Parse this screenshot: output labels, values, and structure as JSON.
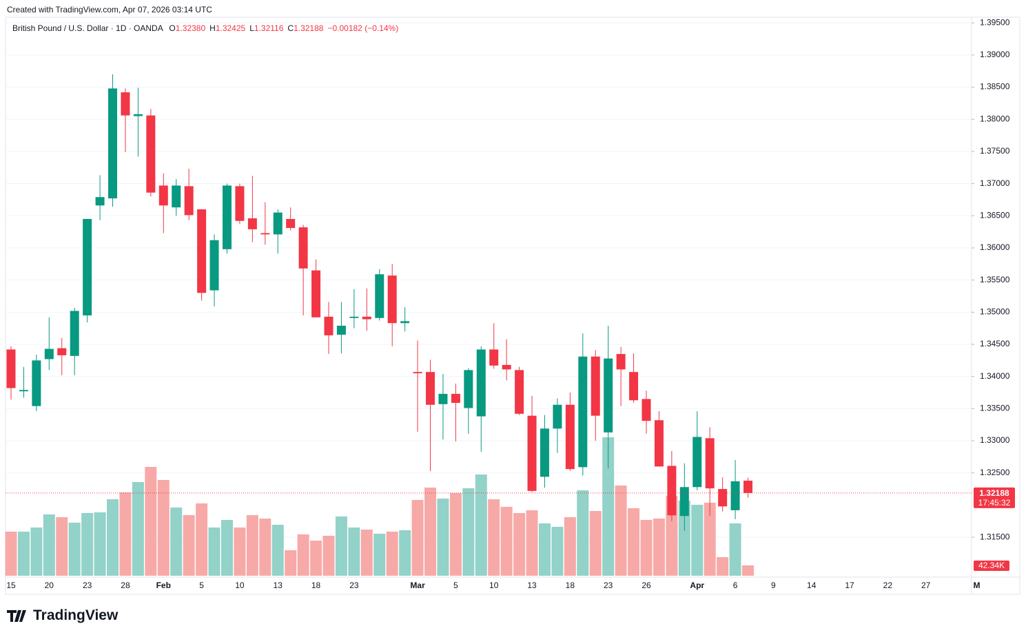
{
  "watermark": "Created with TradingView.com, Apr 07, 2026 03:14 UTC",
  "brand": "TradingView",
  "chart_data": {
    "type": "candlestick",
    "title": "British Pound / U.S. Dollar · 1D · OANDA",
    "legend": [
      {
        "label": "O",
        "text": "1.32380"
      },
      {
        "label": "H",
        "text": "1.32425"
      },
      {
        "label": "L",
        "text": "1.32116"
      },
      {
        "label": "C",
        "text": "1.32188"
      }
    ],
    "change": "−0.00182 (−0.14%)",
    "categories": [
      "15",
      null,
      null,
      "20",
      null,
      null,
      "23",
      null,
      null,
      "28",
      null,
      null,
      "Feb",
      null,
      null,
      "5",
      null,
      null,
      "10",
      null,
      null,
      "13",
      null,
      null,
      "18",
      null,
      null,
      "23",
      null,
      null,
      null,
      null,
      "Mar",
      null,
      null,
      "5",
      null,
      null,
      "10",
      null,
      null,
      "13",
      null,
      null,
      "18",
      null,
      null,
      "23",
      null,
      null,
      "26",
      null,
      null,
      null,
      "Apr",
      null,
      null,
      "6",
      null,
      null,
      "9",
      null,
      null,
      "14",
      null,
      null,
      "17",
      null,
      null,
      "22",
      null,
      null,
      "27",
      null,
      null,
      null,
      "M"
    ],
    "open": [
      1.3442,
      1.3377,
      1.3354,
      1.3427,
      1.3444,
      1.3432,
      1.3495,
      1.3666,
      1.3677,
      1.3842,
      1.3805,
      1.3806,
      1.3697,
      1.3663,
      1.3696,
      1.366,
      1.3534,
      1.3598,
      1.3696,
      1.3646,
      1.3623,
      1.3621,
      1.3645,
      1.3632,
      1.3565,
      1.3493,
      1.3465,
      1.3491,
      1.3493,
      1.3491,
      1.3557,
      1.3483,
      1.3407,
      1.3407,
      1.3357,
      1.3373,
      1.3351,
      1.3338,
      1.3442,
      1.3418,
      1.341,
      1.3339,
      1.3244,
      1.3319,
      1.3356,
      1.3259,
      1.3431,
      1.3313,
      1.3435,
      1.3407,
      1.3365,
      1.3332,
      1.3261,
      1.3183,
      1.3228,
      1.3304,
      1.3225,
      1.3192,
      1.3238,
      null,
      null,
      null,
      null,
      null,
      null,
      null,
      null,
      null,
      null,
      null,
      null,
      null,
      null,
      null,
      null,
      null,
      null
    ],
    "high": [
      1.3447,
      1.3415,
      1.3434,
      1.3492,
      1.346,
      1.3507,
      1.3645,
      1.3713,
      1.387,
      1.3848,
      1.3849,
      1.3816,
      1.3716,
      1.3707,
      1.3723,
      1.366,
      1.3621,
      1.37,
      1.37,
      1.3712,
      1.3671,
      1.366,
      1.3663,
      1.3636,
      1.3582,
      1.3516,
      1.3516,
      1.3536,
      1.3537,
      1.3567,
      1.3575,
      1.3508,
      1.3456,
      1.3426,
      1.3404,
      1.3389,
      1.3413,
      1.3447,
      1.3483,
      1.3458,
      1.3415,
      1.337,
      1.334,
      1.3366,
      1.3375,
      1.3467,
      1.3441,
      1.3479,
      1.3446,
      1.3436,
      1.3378,
      1.3346,
      1.3284,
      1.3265,
      1.3346,
      1.3321,
      1.3243,
      1.327,
      1.32425,
      null,
      null,
      null,
      null,
      null,
      null,
      null,
      null,
      null,
      null,
      null,
      null,
      null,
      null,
      null,
      null,
      null,
      null
    ],
    "low": [
      1.3364,
      1.3367,
      1.3346,
      1.341,
      1.3402,
      1.3402,
      1.3484,
      1.3643,
      1.3664,
      1.3749,
      1.3742,
      1.368,
      1.3623,
      1.365,
      1.3643,
      1.3518,
      1.3509,
      1.3591,
      1.3637,
      1.3609,
      1.3605,
      1.3591,
      1.3627,
      1.3495,
      1.3492,
      1.3435,
      1.3436,
      1.3475,
      1.3471,
      1.3487,
      1.3447,
      1.347,
      1.3314,
      1.3253,
      1.3302,
      1.3299,
      1.3311,
      1.3283,
      1.3412,
      1.3394,
      1.334,
      1.322,
      1.3227,
      1.3281,
      1.3253,
      1.3246,
      1.33,
      1.3257,
      1.3354,
      1.3359,
      1.3311,
      1.326,
      1.3175,
      1.316,
      1.3223,
      1.3183,
      1.319,
      1.3178,
      1.32116,
      null,
      null,
      null,
      null,
      null,
      null,
      null,
      null,
      null,
      null,
      null,
      null,
      null,
      null,
      null,
      null,
      null,
      null
    ],
    "close": [
      1.3382,
      1.3379,
      1.3425,
      1.3443,
      1.3433,
      1.3502,
      1.3645,
      1.3679,
      1.3848,
      1.3806,
      1.3808,
      1.3686,
      1.3666,
      1.3697,
      1.3651,
      1.353,
      1.3612,
      1.3697,
      1.3642,
      1.3629,
      1.3621,
      1.3655,
      1.3631,
      1.3568,
      1.3492,
      1.3464,
      1.3479,
      1.3493,
      1.3489,
      1.3559,
      1.3483,
      1.3486,
      1.3405,
      1.3356,
      1.3373,
      1.3359,
      1.341,
      1.3442,
      1.3417,
      1.3411,
      1.3342,
      1.3222,
      1.3319,
      1.3356,
      1.3256,
      1.3431,
      1.3339,
      1.3428,
      1.3411,
      1.3363,
      1.3331,
      1.326,
      1.3184,
      1.3228,
      1.3306,
      1.3226,
      1.3198,
      1.3237,
      1.32188,
      null,
      null,
      null,
      null,
      null,
      null,
      null,
      null,
      null,
      null,
      null,
      null,
      null,
      null,
      null,
      null,
      null,
      null
    ],
    "volume": [
      180700,
      180700,
      197600,
      251200,
      240000,
      217400,
      256900,
      259700,
      313400,
      341600,
      383900,
      446000,
      392400,
      279500,
      248400,
      296400,
      197600,
      228700,
      197600,
      248400,
      234300,
      208900,
      104500,
      169400,
      144000,
      163700,
      242800,
      197600,
      189100,
      172200,
      180700,
      186300,
      310500,
      361300,
      316200,
      338800,
      358500,
      415000,
      313400,
      282300,
      256900,
      268200,
      214500,
      200400,
      240000,
      350100,
      265400,
      567400,
      369800,
      276700,
      228700,
      234300,
      327500,
      307700,
      290800,
      299200,
      76200,
      214500,
      42340,
      null,
      null,
      null,
      null,
      null,
      null,
      null,
      null,
      null,
      null,
      null,
      null,
      null,
      null,
      null,
      null,
      null,
      null
    ],
    "up_color": "#089981",
    "down_color": "#f23645",
    "volume_up_color": "#92d2c8",
    "volume_down_color": "#f7a9a7",
    "ylim": [
      1.3088,
      1.3977
    ],
    "yticks": [
      {
        "value": 1.395,
        "label": "1.39500"
      },
      {
        "value": 1.39,
        "label": "1.39000"
      },
      {
        "value": 1.385,
        "label": "1.38500"
      },
      {
        "value": 1.38,
        "label": "1.38000"
      },
      {
        "value": 1.375,
        "label": "1.37500"
      },
      {
        "value": 1.37,
        "label": "1.37000"
      },
      {
        "value": 1.365,
        "label": "1.36500"
      },
      {
        "value": 1.36,
        "label": "1.36000"
      },
      {
        "value": 1.355,
        "label": "1.35500"
      },
      {
        "value": 1.35,
        "label": "1.35000"
      },
      {
        "value": 1.345,
        "label": "1.34500"
      },
      {
        "value": 1.34,
        "label": "1.34000"
      },
      {
        "value": 1.335,
        "label": "1.33500"
      },
      {
        "value": 1.33,
        "label": "1.33000"
      },
      {
        "value": 1.325,
        "label": "1.32500"
      },
      {
        "value": 1.315,
        "label": "1.31500"
      }
    ],
    "grid": true,
    "price_label": "1.32188",
    "countdown": "17:45:32",
    "volume_label": "42.34K"
  }
}
